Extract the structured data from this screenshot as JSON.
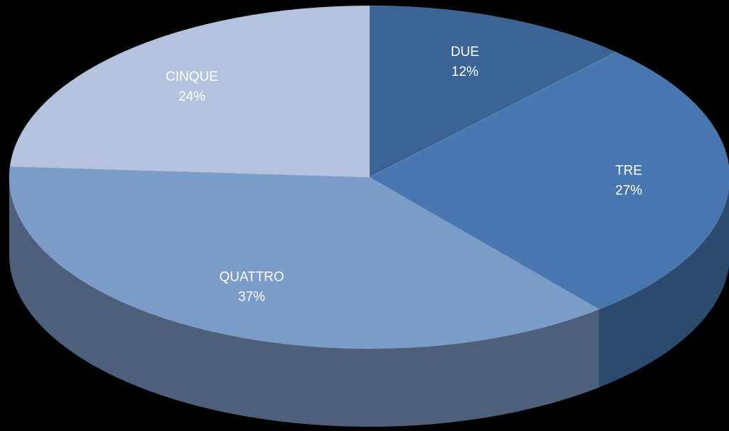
{
  "chart_data": {
    "type": "pie",
    "categories": [
      "DUE",
      "TRE",
      "QUATTRO",
      "CINQUE"
    ],
    "values": [
      12,
      27,
      37,
      24
    ],
    "value_labels": [
      "12%",
      "27%",
      "37%",
      "24%"
    ],
    "colors": [
      "#3a6496",
      "#4677b0",
      "#7b9bc8",
      "#b3c2dd"
    ]
  }
}
